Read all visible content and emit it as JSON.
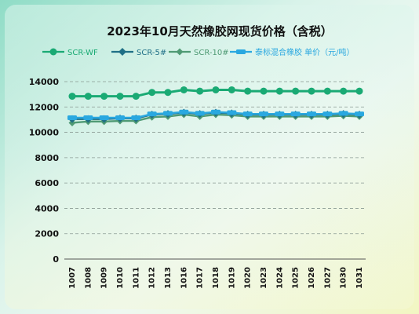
{
  "chart_data": {
    "type": "line",
    "title": "2023年10月天然橡胶网现货价格（含税）",
    "categories": [
      "1007",
      "1008",
      "1009",
      "1010",
      "1011",
      "1012",
      "1013",
      "1016",
      "1017",
      "1018",
      "1019",
      "1020",
      "1023",
      "1024",
      "1025",
      "1026",
      "1027",
      "1030",
      "1031"
    ],
    "series": [
      {
        "name": "SCR-WF",
        "color": "#1aaa74",
        "values": [
          12850,
          12850,
          12850,
          12850,
          12850,
          13150,
          13150,
          13350,
          13250,
          13350,
          13350,
          13250,
          13250,
          13250,
          13250,
          13250,
          13250,
          13250,
          13250
        ]
      },
      {
        "name": "SCR-5#",
        "color": "#1f6f86",
        "values": [
          11050,
          11050,
          11050,
          11100,
          11100,
          11400,
          11450,
          11550,
          11450,
          11550,
          11500,
          11400,
          11400,
          11400,
          11400,
          11400,
          11400,
          11450,
          11400
        ]
      },
      {
        "name": "SCR-10#",
        "color": "#4f9a74",
        "values": [
          10750,
          10850,
          10850,
          10900,
          10900,
          11200,
          11250,
          11400,
          11250,
          11400,
          11350,
          11250,
          11250,
          11250,
          11250,
          11250,
          11250,
          11300,
          11250
        ]
      },
      {
        "name": "泰标混合橡胶 单价（元/吨）",
        "color": "#2aa8e0",
        "values": [
          11150,
          11150,
          11150,
          11150,
          11150,
          11450,
          11500,
          11600,
          11500,
          11600,
          11550,
          11450,
          11450,
          11450,
          11450,
          11450,
          11450,
          11500,
          11450
        ]
      }
    ],
    "yticks": [
      0,
      2000,
      4000,
      6000,
      8000,
      10000,
      12000,
      14000
    ],
    "ylim": [
      0,
      14000
    ],
    "grid": true,
    "legend": "top"
  }
}
